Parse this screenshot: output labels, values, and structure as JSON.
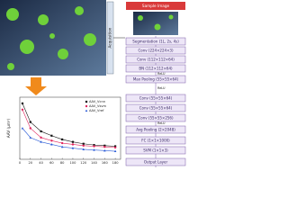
{
  "figure": {
    "acquisition_label": "Acquisition",
    "network": {
      "input": "Sample Image",
      "layers": [
        "Segmentation (1L, 2s, 4s)",
        "Conv (224×224×3)",
        "Conv (112×112×64)",
        "BN (112×112×64)",
        "Max Pooling (55×55×64)",
        "Conv (55×55×64)",
        "Conv (55×55×64)",
        "Conv (55×55×256)",
        "Avg Pooling (2×2048)",
        "FC (1×1×1000)",
        "SVM (1×1×3)",
        "Output Layer"
      ],
      "relu_labels": [
        "ReLU",
        "ReLU",
        "ReLU"
      ]
    }
  },
  "chart_data": {
    "type": "line",
    "ylabel": "AAV (μm²)",
    "x": [
      5,
      20,
      40,
      60,
      80,
      100,
      120,
      140,
      160,
      180
    ],
    "series": [
      {
        "name": "AAV_Vcnn",
        "color": "#111111",
        "marker": "square",
        "values": [
          9,
          6,
          4.5,
          3.8,
          3.2,
          2.8,
          2.5,
          2.3,
          2.2,
          2.1
        ]
      },
      {
        "name": "AAV_Vsvm",
        "color": "#e0245e",
        "marker": "circle",
        "values": [
          8,
          5,
          3.5,
          3,
          2.6,
          2.4,
          2.2,
          2.1,
          2,
          1.9
        ]
      },
      {
        "name": "AAV_Vref",
        "color": "#2a5bd7",
        "marker": "triangle",
        "values": [
          5,
          3.5,
          2.8,
          2.4,
          2,
          1.8,
          1.6,
          1.5,
          1.4,
          1.3
        ]
      }
    ],
    "xlim": [
      0,
      190
    ],
    "xticks": [
      0,
      20,
      40,
      60,
      80,
      100,
      120,
      140,
      160,
      180
    ],
    "ylim": [
      0,
      10
    ]
  }
}
